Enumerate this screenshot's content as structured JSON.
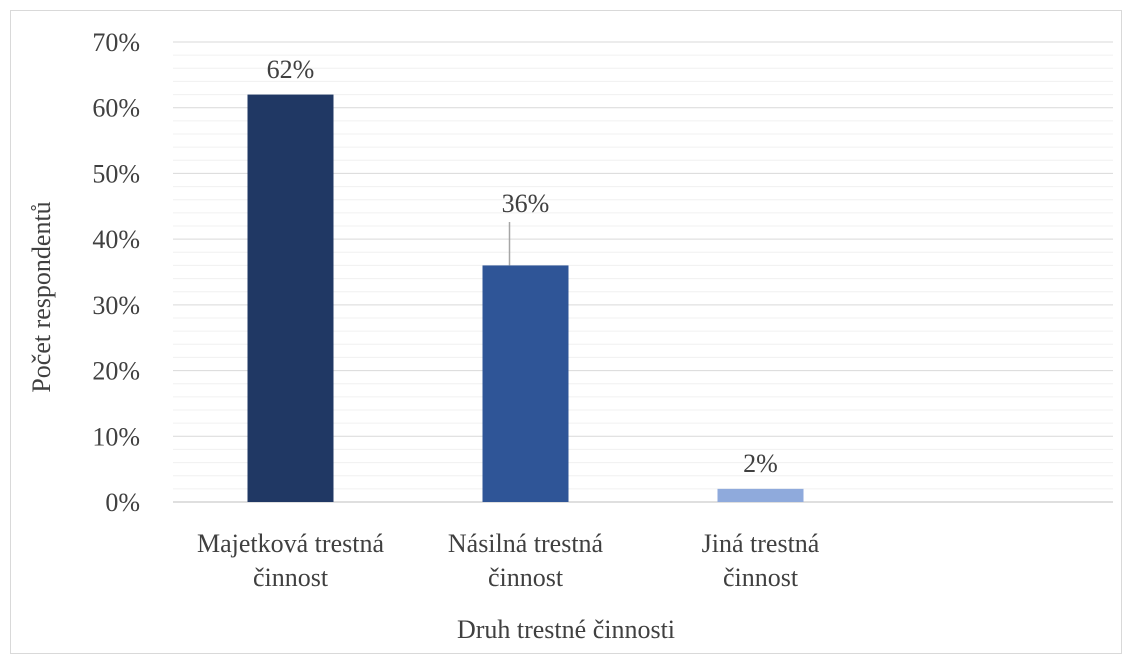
{
  "chart_data": {
    "type": "bar",
    "title": "",
    "xlabel": "Druh trestné činnosti",
    "ylabel": "Počet respondentů",
    "categories": [
      [
        "Majetková trestná",
        "činnost"
      ],
      [
        "Násilná trestná",
        "činnost"
      ],
      [
        "Jiná trestná",
        "činnost"
      ]
    ],
    "values": [
      62,
      36,
      2
    ],
    "data_labels": [
      "62%",
      "36%",
      "2%"
    ],
    "bar_colors": [
      "#203864",
      "#2f5597",
      "#8faadc"
    ],
    "ylim": [
      0,
      70
    ],
    "yticks": [
      0,
      10,
      20,
      30,
      40,
      50,
      60,
      70
    ],
    "ytick_labels": [
      "0%",
      "10%",
      "20%",
      "30%",
      "40%",
      "50%",
      "60%",
      "70%"
    ],
    "grid": true,
    "minor_grid": true,
    "legend": "none"
  }
}
